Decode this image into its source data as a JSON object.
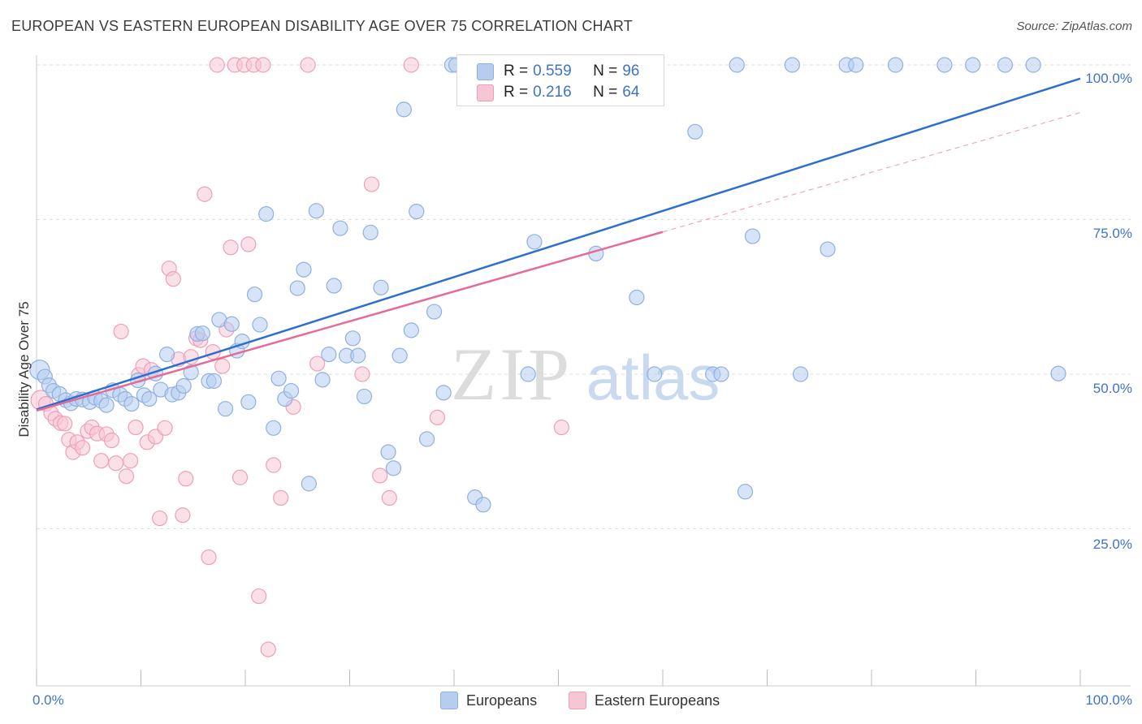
{
  "title": "EUROPEAN VS EASTERN EUROPEAN DISABILITY AGE OVER 75 CORRELATION CHART",
  "source": "Source: ZipAtlas.com",
  "watermark": {
    "zip": "ZIP",
    "atlas": "atlas"
  },
  "colors": {
    "europeans_fill": "#b7cdf0",
    "europeans_stroke": "#8eb0e2",
    "europeans_line": "#2c6fd1",
    "eastern_fill": "#f6c6d4",
    "eastern_stroke": "#ef9fb8",
    "eastern_line": "#e46b96",
    "axis_text": "#3f73c8",
    "grid": "#dddddd"
  },
  "legend": {
    "rows": [
      {
        "r_label": "R =",
        "r_value": "0.559",
        "n_label": "N =",
        "n_value": "96"
      },
      {
        "r_label": "R =",
        "r_value": "0.216",
        "n_label": "N =",
        "n_value": "64"
      }
    ]
  },
  "bottom_legend": {
    "europeans": "Europeans",
    "eastern": "Eastern Europeans"
  },
  "chart_data": {
    "type": "scatter",
    "title": "EUROPEAN VS EASTERN EUROPEAN DISABILITY AGE OVER 75 CORRELATION CHART",
    "xlabel": "",
    "ylabel": "Disability Age Over 75",
    "xlim": [
      0,
      100
    ],
    "ylim": [
      0,
      100
    ],
    "x_tick_labels": {
      "left": "0.0%",
      "right": "100.0%"
    },
    "y_ticks": [
      {
        "value": 100,
        "label": "100.0%"
      },
      {
        "value": 75,
        "label": "75.0%"
      },
      {
        "value": 50,
        "label": "50.0%"
      },
      {
        "value": 25,
        "label": "25.0%"
      }
    ],
    "series": [
      {
        "name": "Europeans",
        "r": 0.559,
        "n": 96,
        "trend": {
          "x": [
            0,
            100
          ],
          "y": [
            44.3,
            97.8
          ],
          "style": "solid"
        },
        "points": [
          [
            0.3,
            50.7
          ],
          [
            0.8,
            49.6
          ],
          [
            1.2,
            48.2
          ],
          [
            1.6,
            47.3
          ],
          [
            2.2,
            46.8
          ],
          [
            2.8,
            45.8
          ],
          [
            3.3,
            45.3
          ],
          [
            3.8,
            46.0
          ],
          [
            4.4,
            45.9
          ],
          [
            5.1,
            45.5
          ],
          [
            5.6,
            46.2
          ],
          [
            6.2,
            45.7
          ],
          [
            6.7,
            45.0
          ],
          [
            7.3,
            47.4
          ],
          [
            8.0,
            46.7
          ],
          [
            8.5,
            46.0
          ],
          [
            9.1,
            45.2
          ],
          [
            9.7,
            49.0
          ],
          [
            10.3,
            46.6
          ],
          [
            10.8,
            46.0
          ],
          [
            11.4,
            50.1
          ],
          [
            11.9,
            47.5
          ],
          [
            12.5,
            53.2
          ],
          [
            13.0,
            46.7
          ],
          [
            13.6,
            47.0
          ],
          [
            14.1,
            48.1
          ],
          [
            14.8,
            50.3
          ],
          [
            15.4,
            56.5
          ],
          [
            15.9,
            56.6
          ],
          [
            16.5,
            48.9
          ],
          [
            17.0,
            48.9
          ],
          [
            17.5,
            58.8
          ],
          [
            18.1,
            44.4
          ],
          [
            18.7,
            58.1
          ],
          [
            19.2,
            53.8
          ],
          [
            19.7,
            55.3
          ],
          [
            20.3,
            45.5
          ],
          [
            20.9,
            62.9
          ],
          [
            21.4,
            58.0
          ],
          [
            22.0,
            75.9
          ],
          [
            22.7,
            41.3
          ],
          [
            23.2,
            49.3
          ],
          [
            23.8,
            46.0
          ],
          [
            24.4,
            47.3
          ],
          [
            25.0,
            63.9
          ],
          [
            25.6,
            66.9
          ],
          [
            26.1,
            32.3
          ],
          [
            26.8,
            76.4
          ],
          [
            27.4,
            49.1
          ],
          [
            28.0,
            53.2
          ],
          [
            28.5,
            64.3
          ],
          [
            29.1,
            73.6
          ],
          [
            29.7,
            53.0
          ],
          [
            30.3,
            55.8
          ],
          [
            30.8,
            53.0
          ],
          [
            31.4,
            46.4
          ],
          [
            32.0,
            72.9
          ],
          [
            33.0,
            64.0
          ],
          [
            33.7,
            37.4
          ],
          [
            34.2,
            34.8
          ],
          [
            34.8,
            53.0
          ],
          [
            35.2,
            92.8
          ],
          [
            35.9,
            57.1
          ],
          [
            36.4,
            76.3
          ],
          [
            37.4,
            39.5
          ],
          [
            38.1,
            60.1
          ],
          [
            39.0,
            47.0
          ],
          [
            39.8,
            100
          ],
          [
            40.2,
            100
          ],
          [
            42.0,
            30.1
          ],
          [
            42.8,
            28.9
          ],
          [
            44.0,
            100
          ],
          [
            47.1,
            50.0
          ],
          [
            47.7,
            71.4
          ],
          [
            51.5,
            100
          ],
          [
            52.1,
            100
          ],
          [
            53.6,
            69.5
          ],
          [
            57.5,
            62.4
          ],
          [
            59.2,
            50.0
          ],
          [
            63.1,
            89.2
          ],
          [
            64.8,
            50.0
          ],
          [
            65.6,
            50.0
          ],
          [
            67.1,
            100
          ],
          [
            67.9,
            31.0
          ],
          [
            68.6,
            72.3
          ],
          [
            72.4,
            100
          ],
          [
            73.2,
            50.0
          ],
          [
            75.8,
            70.2
          ],
          [
            77.6,
            100
          ],
          [
            78.5,
            100
          ],
          [
            82.3,
            100
          ],
          [
            87.0,
            100
          ],
          [
            89.7,
            100
          ],
          [
            92.8,
            100
          ],
          [
            95.5,
            100
          ],
          [
            97.9,
            50.1
          ]
        ]
      },
      {
        "name": "Eastern Europeans",
        "r": 0.216,
        "n": 64,
        "trend": {
          "x": [
            0,
            60
          ],
          "y": [
            44.1,
            73.0
          ],
          "style": "solid",
          "extension": {
            "x": [
              60,
              100
            ],
            "y": [
              73.0,
              92.3
            ],
            "style": "dashed"
          }
        },
        "points": [
          [
            0.4,
            45.8
          ],
          [
            0.9,
            45.2
          ],
          [
            1.4,
            43.7
          ],
          [
            1.8,
            42.8
          ],
          [
            2.3,
            42.1
          ],
          [
            2.7,
            42.0
          ],
          [
            3.1,
            39.4
          ],
          [
            3.5,
            37.4
          ],
          [
            3.9,
            39.0
          ],
          [
            4.4,
            38.1
          ],
          [
            4.9,
            40.8
          ],
          [
            5.3,
            41.4
          ],
          [
            5.8,
            40.4
          ],
          [
            6.2,
            36.0
          ],
          [
            6.7,
            40.3
          ],
          [
            7.2,
            39.3
          ],
          [
            7.6,
            35.6
          ],
          [
            8.1,
            56.9
          ],
          [
            8.6,
            33.5
          ],
          [
            9.0,
            36.0
          ],
          [
            9.5,
            41.4
          ],
          [
            9.8,
            49.9
          ],
          [
            10.2,
            51.3
          ],
          [
            10.6,
            39.0
          ],
          [
            11.0,
            50.7
          ],
          [
            11.4,
            39.9
          ],
          [
            11.8,
            26.7
          ],
          [
            12.3,
            41.3
          ],
          [
            12.7,
            67.1
          ],
          [
            13.1,
            65.4
          ],
          [
            13.6,
            52.4
          ],
          [
            14.0,
            27.2
          ],
          [
            14.3,
            33.1
          ],
          [
            14.8,
            52.8
          ],
          [
            15.3,
            55.8
          ],
          [
            15.7,
            55.5
          ],
          [
            16.1,
            79.1
          ],
          [
            16.5,
            20.4
          ],
          [
            16.9,
            53.6
          ],
          [
            17.3,
            100
          ],
          [
            17.8,
            51.3
          ],
          [
            18.2,
            57.2
          ],
          [
            18.6,
            70.5
          ],
          [
            19.0,
            100
          ],
          [
            19.5,
            33.3
          ],
          [
            19.9,
            100
          ],
          [
            20.3,
            71.0
          ],
          [
            20.8,
            100
          ],
          [
            21.3,
            14.1
          ],
          [
            21.7,
            100
          ],
          [
            22.2,
            5.5
          ],
          [
            22.7,
            35.3
          ],
          [
            23.4,
            30.0
          ],
          [
            24.6,
            44.7
          ],
          [
            26.0,
            100
          ],
          [
            26.9,
            51.7
          ],
          [
            31.2,
            50.0
          ],
          [
            32.1,
            80.7
          ],
          [
            32.9,
            33.6
          ],
          [
            33.8,
            30.0
          ],
          [
            35.9,
            100
          ],
          [
            38.4,
            43.0
          ],
          [
            42.4,
            100
          ],
          [
            50.3,
            41.4
          ]
        ]
      }
    ]
  }
}
